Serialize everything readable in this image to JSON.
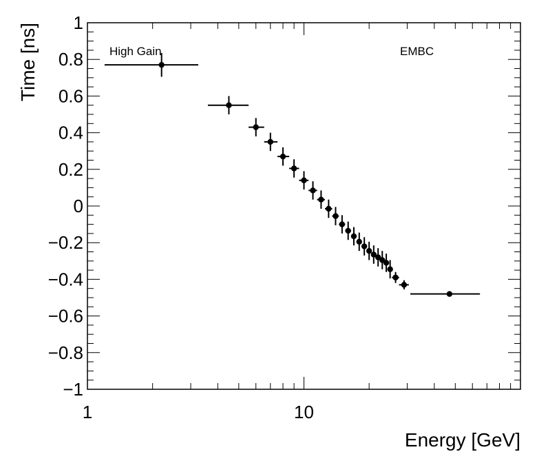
{
  "chart_data": {
    "type": "scatter",
    "title": "",
    "xlabel": "Energy [GeV]",
    "ylabel": "Time [ns]",
    "xscale": "log",
    "xlim": [
      1,
      100
    ],
    "ylim": [
      -1,
      1
    ],
    "grid": false,
    "x_tick_labels": [
      "1",
      "10"
    ],
    "y_tick_labels": [
      "1",
      "0.8",
      "0.6",
      "0.4",
      "0.2",
      "0",
      "−0.2",
      "−0.4",
      "−0.6",
      "−0.8",
      "−1"
    ],
    "annotations": [
      "High Gain",
      "EMBC"
    ],
    "series": [
      {
        "name": "EMBC High Gain",
        "color": "#000000",
        "points": [
          {
            "x": 2.2,
            "y": 0.77,
            "xlo": 1.2,
            "xhi": 3.25,
            "yerr": 0.065
          },
          {
            "x": 4.5,
            "y": 0.55,
            "xlo": 3.6,
            "xhi": 5.55,
            "yerr": 0.05
          },
          {
            "x": 6.0,
            "y": 0.43,
            "xlo": 5.55,
            "xhi": 6.55,
            "yerr": 0.05
          },
          {
            "x": 7.0,
            "y": 0.35,
            "xlo": 6.55,
            "xhi": 7.55,
            "yerr": 0.05
          },
          {
            "x": 8.0,
            "y": 0.27,
            "xlo": 7.55,
            "xhi": 8.55,
            "yerr": 0.05
          },
          {
            "x": 9.0,
            "y": 0.205,
            "xlo": 8.55,
            "xhi": 9.5,
            "yerr": 0.05
          },
          {
            "x": 10.0,
            "y": 0.14,
            "xlo": 9.5,
            "xhi": 10.5,
            "yerr": 0.05
          },
          {
            "x": 11.0,
            "y": 0.085,
            "xlo": 10.5,
            "xhi": 11.5,
            "yerr": 0.05
          },
          {
            "x": 12.0,
            "y": 0.035,
            "xlo": 11.5,
            "xhi": 12.5,
            "yerr": 0.05
          },
          {
            "x": 13.0,
            "y": -0.015,
            "xlo": 12.5,
            "xhi": 13.5,
            "yerr": 0.05
          },
          {
            "x": 14.0,
            "y": -0.055,
            "xlo": 13.5,
            "xhi": 14.5,
            "yerr": 0.05
          },
          {
            "x": 15.0,
            "y": -0.1,
            "xlo": 14.5,
            "xhi": 15.5,
            "yerr": 0.05
          },
          {
            "x": 16.0,
            "y": -0.135,
            "xlo": 15.5,
            "xhi": 16.5,
            "yerr": 0.05
          },
          {
            "x": 17.0,
            "y": -0.165,
            "xlo": 16.5,
            "xhi": 17.5,
            "yerr": 0.05
          },
          {
            "x": 18.0,
            "y": -0.195,
            "xlo": 17.5,
            "xhi": 18.5,
            "yerr": 0.05
          },
          {
            "x": 19.0,
            "y": -0.22,
            "xlo": 18.5,
            "xhi": 19.5,
            "yerr": 0.05
          },
          {
            "x": 20.0,
            "y": -0.245,
            "xlo": 19.5,
            "xhi": 20.5,
            "yerr": 0.05
          },
          {
            "x": 21.0,
            "y": -0.265,
            "xlo": 20.5,
            "xhi": 21.5,
            "yerr": 0.05
          },
          {
            "x": 22.0,
            "y": -0.28,
            "xlo": 21.5,
            "xhi": 22.5,
            "yerr": 0.05
          },
          {
            "x": 23.0,
            "y": -0.295,
            "xlo": 22.5,
            "xhi": 23.5,
            "yerr": 0.05
          },
          {
            "x": 24.0,
            "y": -0.31,
            "xlo": 23.5,
            "xhi": 24.5,
            "yerr": 0.05
          },
          {
            "x": 25.0,
            "y": -0.345,
            "xlo": 24.5,
            "xhi": 25.5,
            "yerr": 0.05
          },
          {
            "x": 26.5,
            "y": -0.39,
            "xlo": 25.5,
            "xhi": 27.5,
            "yerr": 0.03
          },
          {
            "x": 29.0,
            "y": -0.43,
            "xlo": 27.5,
            "xhi": 30.5,
            "yerr": 0.025
          },
          {
            "x": 47.0,
            "y": -0.48,
            "xlo": 31.0,
            "xhi": 65.0,
            "yerr": 0.0
          }
        ]
      }
    ]
  }
}
